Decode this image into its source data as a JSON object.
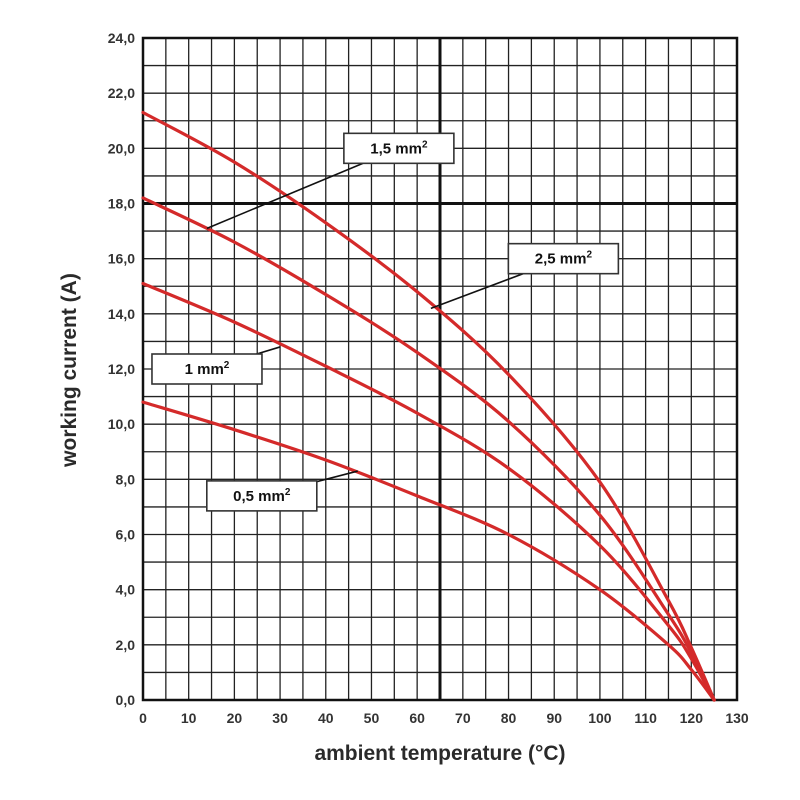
{
  "chart_data": {
    "type": "line",
    "title": "",
    "xlabel": "ambient temperature (°C)",
    "ylabel": "working current (A)",
    "xlim": [
      0,
      130
    ],
    "ylim": [
      0,
      24
    ],
    "x_ticks": [
      "0",
      "10",
      "20",
      "30",
      "40",
      "50",
      "60",
      "70",
      "80",
      "90",
      "100",
      "110",
      "120",
      "130"
    ],
    "y_ticks": [
      "0,0",
      "2,0",
      "4,0",
      "6,0",
      "8,0",
      "10,0",
      "12,0",
      "14,0",
      "16,0",
      "18,0",
      "20,0",
      "22,0",
      "24,0"
    ],
    "grid": true,
    "minor_grid_x_step": 5,
    "minor_grid_y_step": 1,
    "major_grid_x": [
      65
    ],
    "major_grid_y": [
      18
    ],
    "line_color": "#d42a2a",
    "series": [
      {
        "name": "2,5 mm²",
        "label_text": "2,5 mm",
        "label_sup": "2",
        "x": [
          0,
          20,
          40,
          60,
          80,
          100,
          115,
          120,
          125
        ],
        "values": [
          21.3,
          19.5,
          17.3,
          14.8,
          11.8,
          7.9,
          3.6,
          1.9,
          0
        ]
      },
      {
        "name": "1,5 mm²",
        "label_text": "1,5 mm",
        "label_sup": "2",
        "x": [
          0,
          20,
          40,
          60,
          80,
          100,
          115,
          120,
          125
        ],
        "values": [
          18.2,
          16.6,
          14.7,
          12.6,
          10.1,
          6.7,
          3.1,
          1.7,
          0
        ]
      },
      {
        "name": "1 mm²",
        "label_text": "1 mm",
        "label_sup": "2",
        "x": [
          0,
          20,
          40,
          60,
          80,
          100,
          115,
          120,
          125
        ],
        "values": [
          15.1,
          13.7,
          12.1,
          10.4,
          8.4,
          5.6,
          2.7,
          1.5,
          0
        ]
      },
      {
        "name": "0,5 mm²",
        "label_text": "0,5 mm",
        "label_sup": "2",
        "x": [
          0,
          20,
          40,
          60,
          80,
          100,
          115,
          120,
          125
        ],
        "values": [
          10.8,
          9.8,
          8.7,
          7.4,
          6.0,
          4.0,
          2.0,
          1.1,
          0
        ]
      }
    ],
    "annotations": [
      {
        "series": "1,5 mm²",
        "label_x": 56,
        "label_y": 20.0,
        "point_x": 14,
        "point_y": 17.1
      },
      {
        "series": "2,5 mm²",
        "label_x": 92,
        "label_y": 16.0,
        "point_x": 63,
        "point_y": 14.2
      },
      {
        "series": "1 mm²",
        "label_x": 14,
        "label_y": 12.0,
        "point_x": 30,
        "point_y": 12.8
      },
      {
        "series": "0,5 mm²",
        "label_x": 26,
        "label_y": 7.4,
        "point_x": 47,
        "point_y": 8.3
      }
    ]
  }
}
